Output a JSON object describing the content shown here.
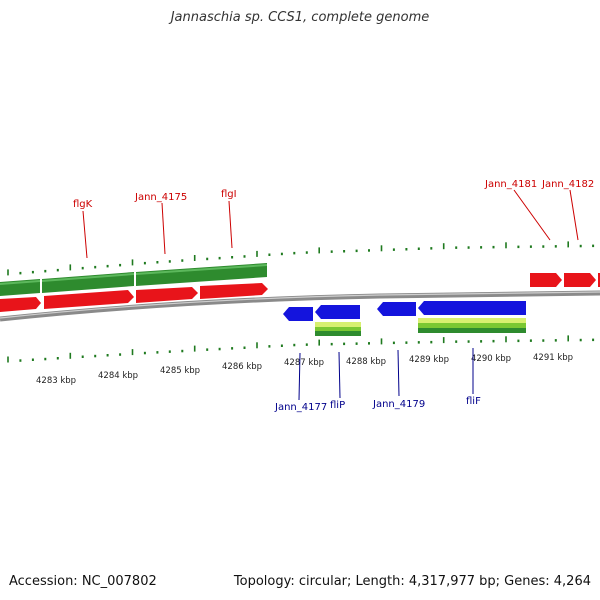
{
  "title": "Jannaschia sp. CCS1, complete genome",
  "footer": {
    "accession": "Accession: NC_007802",
    "summary": "Topology: circular; Length: 4,317,977 bp; Genes: 4,264"
  },
  "colors": {
    "forward_cds": "#e8141a",
    "reverse_cds": "#1414dd",
    "forward_feature": "#2e8b2e",
    "reverse_feature": "#7bc832",
    "tick": "#1f7a1f",
    "forward_label": "#cc0000",
    "reverse_label": "#00008b",
    "backbone": "#8a8a8a"
  },
  "scale_labels": [
    "4283 kbp",
    "4284 kbp",
    "4285 kbp",
    "4286 kbp",
    "4287 kbp",
    "4288 kbp",
    "4289 kbp",
    "4290 kbp",
    "4291 kbp"
  ],
  "gene_labels_forward": [
    "flgK",
    "Jann_4175",
    "flgI",
    "Jann_4181",
    "Jann_4182"
  ],
  "gene_labels_reverse": [
    "Jann_4177",
    "fliP",
    "Jann_4179",
    "fliF"
  ]
}
